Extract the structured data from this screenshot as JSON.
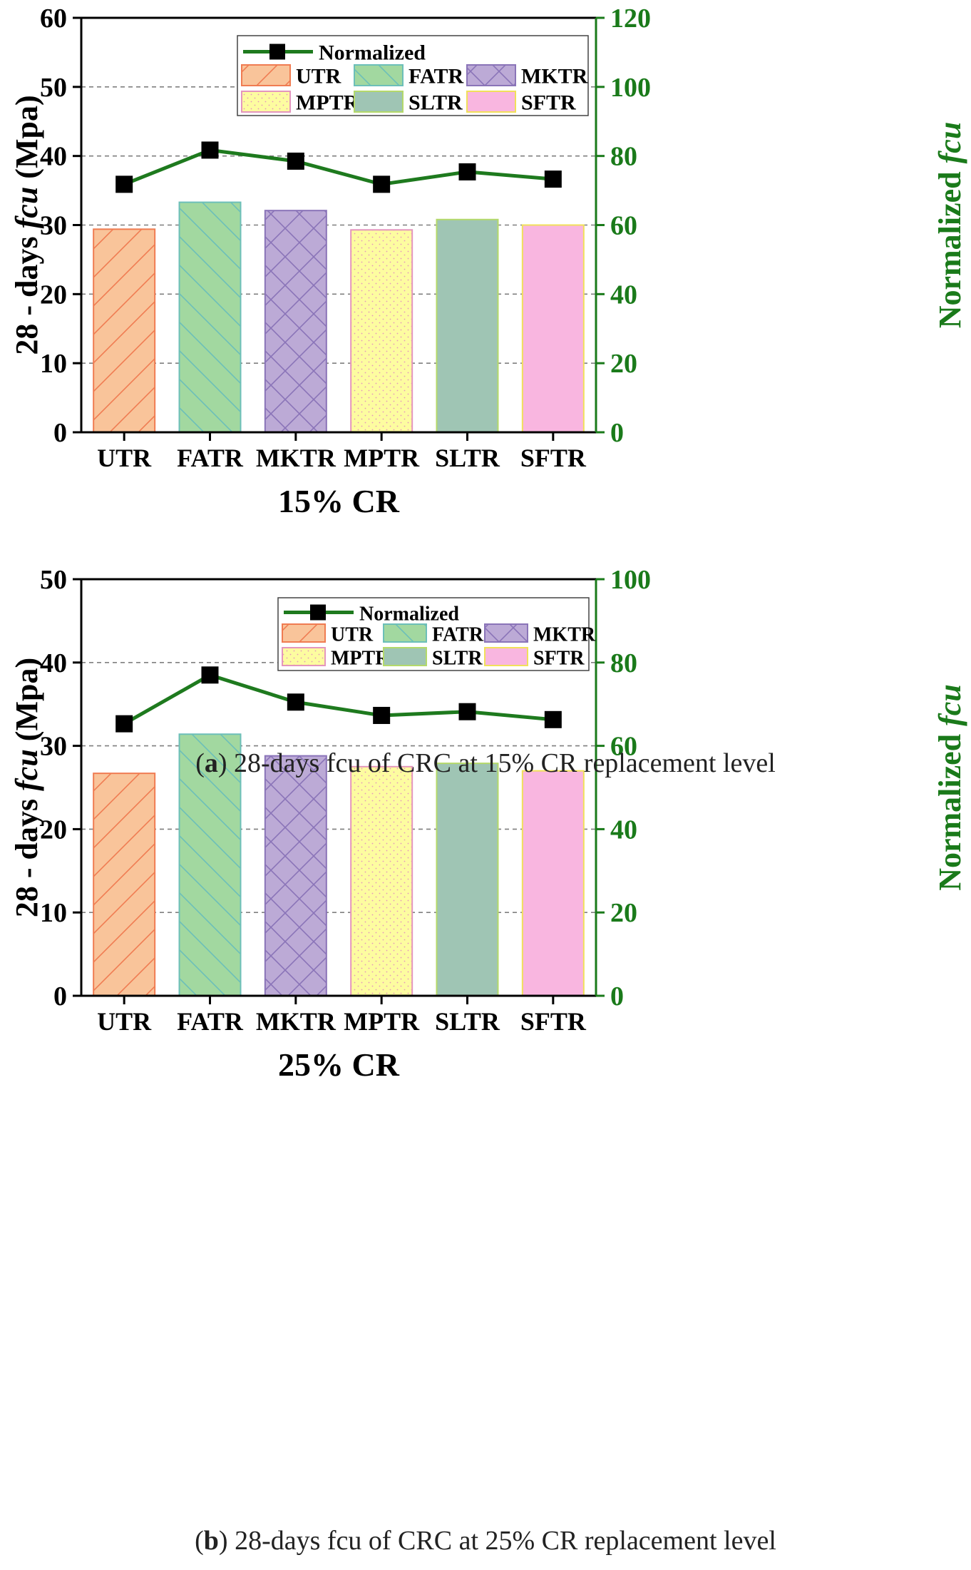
{
  "colors": {
    "axis": "#000000",
    "right_axis": "#1a7a1a",
    "line": "#1e7a1e",
    "marker": "#000000",
    "grid": "#7f7f7f"
  },
  "series_styles": [
    {
      "name": "UTR",
      "fill": "#f9c49a",
      "stroke": "#f07c52",
      "pattern": "diag-up"
    },
    {
      "name": "FATR",
      "fill": "#a2d8a0",
      "stroke": "#6cbfb9",
      "pattern": "diag-down"
    },
    {
      "name": "MKTR",
      "fill": "#bcaad6",
      "stroke": "#8a74b8",
      "pattern": "cross"
    },
    {
      "name": "MPTR",
      "fill": "#fdfca0",
      "stroke": "#e496bd",
      "pattern": "dots"
    },
    {
      "name": "SLTR",
      "fill": "#9fc5b4",
      "stroke": "#b4d96a",
      "pattern": "none"
    },
    {
      "name": "SFTR",
      "fill": "#f9b6e0",
      "stroke": "#f1e05a",
      "pattern": "none"
    }
  ],
  "captions": {
    "a_letter": "a",
    "a_text": ") 28-days fcu of CRC at 15% CR replacement level",
    "b_letter": "b",
    "b_text": ") 28-days fcu of CRC at 25% CR replacement level"
  },
  "chart_data": [
    {
      "type": "bar",
      "title": "(a) 28-days fcu of CRC at 15% CR replacement level",
      "categories": [
        "UTR",
        "FATR",
        "MKTR",
        "MPTR",
        "SLTR",
        "SFTR"
      ],
      "values": [
        29.4,
        33.3,
        32.1,
        29.3,
        30.8,
        30.0
      ],
      "xlabel": "15% CR",
      "ylabel_prefix": "28 - days ",
      "ylabel_italic": "fcu",
      "ylabel_suffix": " (Mpa)",
      "ylim": [
        0,
        60
      ],
      "yticks": [
        0,
        10,
        20,
        30,
        40,
        50,
        60
      ],
      "y2label_prefix": "Normalized ",
      "y2label_italic": "fcu",
      "y2lim": [
        0,
        120
      ],
      "y2ticks": [
        0,
        20,
        40,
        60,
        80,
        100,
        120
      ],
      "line_series": {
        "name": "Normalized",
        "values": [
          71.8,
          81.7,
          78.5,
          71.8,
          75.4,
          73.3
        ]
      },
      "legend": {
        "line_label": "Normalized",
        "bar_labels": [
          "UTR",
          "FATR",
          "MKTR",
          "MPTR",
          "SLTR",
          "SFTR"
        ],
        "position": "top-center"
      },
      "grid": true
    },
    {
      "type": "bar",
      "title": "(b) 28-days fcu of CRC at 25% CR replacement level",
      "categories": [
        "UTR",
        "FATR",
        "MKTR",
        "MPTR",
        "SLTR",
        "SFTR"
      ],
      "values": [
        26.7,
        31.4,
        28.8,
        27.5,
        27.9,
        27.0
      ],
      "xlabel": "25% CR",
      "ylabel_prefix": "28 - days ",
      "ylabel_italic": "fcu",
      "ylabel_suffix": " (Mpa)",
      "ylim": [
        0,
        50
      ],
      "yticks": [
        0,
        10,
        20,
        30,
        40,
        50
      ],
      "y2label_prefix": "Normalized ",
      "y2label_italic": "fcu",
      "y2lim": [
        0,
        100
      ],
      "y2ticks": [
        0,
        20,
        40,
        60,
        80,
        100
      ],
      "line_series": {
        "name": "Normalized",
        "values": [
          65.3,
          77.0,
          70.5,
          67.3,
          68.2,
          66.3
        ]
      },
      "legend": {
        "line_label": "Normalized",
        "bar_labels": [
          "UTR",
          "FATR",
          "MKTR",
          "MPTR",
          "SLTR",
          "SFTR"
        ],
        "position": "top-center"
      },
      "grid": true
    }
  ]
}
